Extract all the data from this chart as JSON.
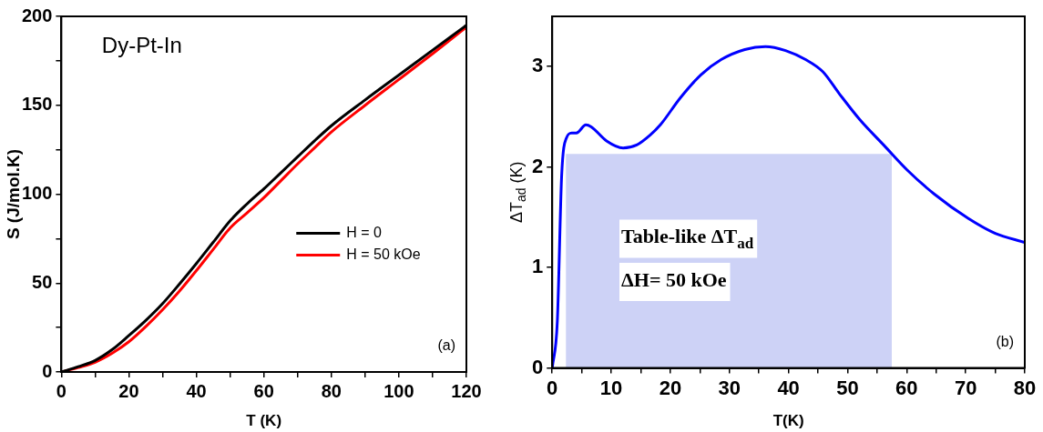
{
  "chart_data": [
    {
      "type": "line",
      "xlabel": "T (K)",
      "ylabel": "S (J/mol.K)",
      "xlim": [
        0,
        120
      ],
      "ylim": [
        0,
        200
      ],
      "xticks": [
        0,
        {
          "value": 10,
          "label": null
        },
        20,
        {
          "value": 30,
          "label": null
        },
        40,
        {
          "value": 50,
          "label": null
        },
        60,
        {
          "value": 70,
          "label": null
        },
        80,
        {
          "value": 90,
          "label": null
        },
        100,
        {
          "value": 110,
          "label": null
        },
        120
      ],
      "yticks": [
        0,
        {
          "value": 25,
          "label": null
        },
        50,
        {
          "value": 75,
          "label": null
        },
        100,
        {
          "value": 125,
          "label": null
        },
        150,
        {
          "value": 175,
          "label": null
        },
        200
      ],
      "x": [
        0,
        5,
        10,
        15,
        20,
        25,
        30,
        35,
        40,
        45,
        50,
        55,
        60,
        65,
        70,
        75,
        80,
        90,
        100,
        110,
        120
      ],
      "series": [
        {
          "name": "H = 0",
          "color": "#000000",
          "values": [
            0,
            3,
            6.5,
            12.5,
            20.5,
            29,
            38.5,
            49.5,
            61,
            73,
            85,
            94.5,
            103,
            112,
            121,
            130,
            138.5,
            153,
            167,
            181,
            195
          ]
        },
        {
          "name": "H = 50 kOe",
          "color": "#ff0000",
          "values": [
            0,
            2.5,
            5.5,
            10.5,
            17,
            25.5,
            35,
            45.5,
            57,
            69,
            81,
            89.5,
            98,
            107.5,
            117,
            126,
            135,
            150,
            164.5,
            179,
            194
          ]
        }
      ],
      "legend": "right",
      "marker": "none",
      "line_style": "solid",
      "annotations": [
        "Dy-Pt-In",
        "(a)"
      ]
    },
    {
      "type": "line",
      "xlabel": "T(K)",
      "ylabel": "ΔT$_{ad}$ (K)",
      "xlim": [
        0,
        80
      ],
      "ylim": [
        0,
        3.5
      ],
      "xticks": [
        0,
        {
          "value": 5,
          "label": null
        },
        10,
        {
          "value": 15,
          "label": null
        },
        20,
        {
          "value": 25,
          "label": null
        },
        30,
        {
          "value": 35,
          "label": null
        },
        40,
        {
          "value": 45,
          "label": null
        },
        50,
        {
          "value": 55,
          "label": null
        },
        60,
        {
          "value": 65,
          "label": null
        },
        70,
        {
          "value": 75,
          "label": null
        },
        80
      ],
      "yticks": [
        0,
        1,
        2,
        3
      ],
      "series": [
        {
          "type": "area",
          "color": "#cdd2f6",
          "x": [
            2.3,
            57.5
          ],
          "values": [
            2.13,
            2.13
          ]
        },
        {
          "color": "#0000ff",
          "x": [
            0,
            0.86,
            1.6,
            2.4,
            3.3,
            4.1,
            5.7,
            6.6,
            9.2,
            12.0,
            14.3,
            16.6,
            18.3,
            21.7,
            25.2,
            28.6,
            32.6,
            36.1,
            39.5,
            42.9,
            45.8,
            48.6,
            52.1,
            56.1,
            60.1,
            64.7,
            70.4,
            75.0,
            80
          ],
          "values": [
            0,
            0.46,
            1.92,
            2.29,
            2.34,
            2.34,
            2.42,
            2.4,
            2.26,
            2.19,
            2.22,
            2.32,
            2.42,
            2.69,
            2.92,
            3.07,
            3.17,
            3.2,
            3.16,
            3.07,
            2.95,
            2.73,
            2.47,
            2.22,
            1.97,
            1.73,
            1.49,
            1.34,
            1.25
          ]
        }
      ],
      "marker": "none",
      "line_style": "solid",
      "annotations": [
        "Table-like ΔT$_{ad}$",
        "ΔH= 50 kOe",
        "(b)"
      ]
    }
  ]
}
